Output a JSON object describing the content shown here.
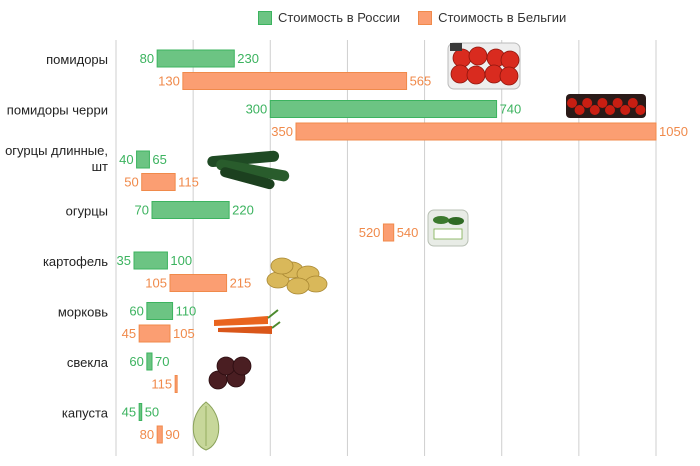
{
  "legend": {
    "russia_label": "Стоимость в России",
    "belgium_label": "Стоимость в Бельгии"
  },
  "colors": {
    "russia_fill": "#6cc483",
    "russia_stroke": "#3cb35f",
    "belgium_fill": "#fb9e72",
    "belgium_stroke": "#f08a4b",
    "grid": "#cfcfcf"
  },
  "chart_data": {
    "type": "bar",
    "orientation": "horizontal-floating-range",
    "title": "",
    "xlim": [
      0,
      1050
    ],
    "grid_step": 150,
    "categories": [
      {
        "label": [
          "помидоры"
        ],
        "russia": [
          80,
          230
        ],
        "belgium": [
          130,
          565
        ],
        "image": "tomatoes"
      },
      {
        "label": [
          "помидоры черри"
        ],
        "russia": [
          300,
          740
        ],
        "belgium": [
          350,
          1050
        ],
        "image": "cherry-tomatoes"
      },
      {
        "label": [
          "огурцы длинные,",
          "шт"
        ],
        "russia": [
          40,
          65
        ],
        "belgium": [
          50,
          115
        ],
        "image": "long-cucumbers"
      },
      {
        "label": [
          "огурцы"
        ],
        "russia": [
          70,
          220
        ],
        "belgium": [
          520,
          540
        ],
        "image": "cucumbers"
      },
      {
        "label": [
          "картофель"
        ],
        "russia": [
          35,
          100
        ],
        "belgium": [
          105,
          215
        ],
        "image": "potatoes"
      },
      {
        "label": [
          "морковь"
        ],
        "russia": [
          60,
          110
        ],
        "belgium": [
          45,
          105
        ],
        "image": "carrots"
      },
      {
        "label": [
          "свекла"
        ],
        "russia": [
          60,
          70
        ],
        "belgium": [
          115,
          115
        ],
        "belgium_labels": [
          "115"
        ],
        "image": "beets"
      },
      {
        "label": [
          "капуста"
        ],
        "russia": [
          45,
          50
        ],
        "belgium": [
          80,
          90
        ],
        "image": "cabbage"
      }
    ]
  }
}
